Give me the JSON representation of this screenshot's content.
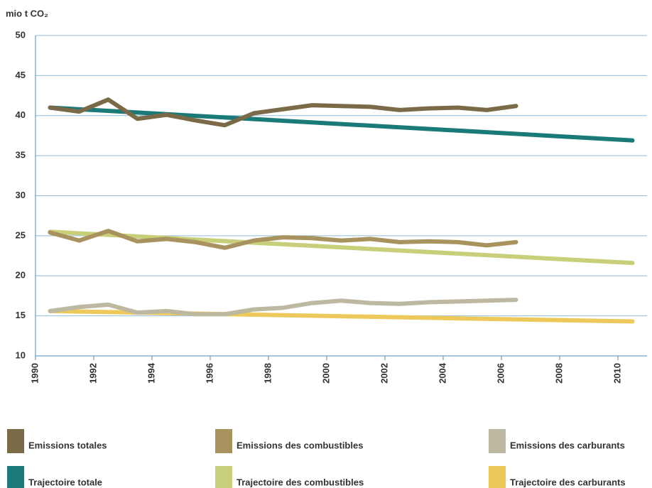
{
  "chart_data": {
    "type": "line",
    "y_label": "mio t CO₂",
    "xlim": [
      1990,
      2011
    ],
    "xticks": [
      1990,
      1992,
      1994,
      1996,
      1998,
      2000,
      2002,
      2004,
      2006,
      2008,
      2010
    ],
    "ylim": [
      10,
      50
    ],
    "yticks": [
      10,
      15,
      20,
      25,
      30,
      35,
      40,
      45,
      50
    ],
    "grid": true,
    "legend": "bottom",
    "series": [
      {
        "name": "Emissions totales",
        "color": "#7a6a48",
        "x": [
          1990.5,
          1991.5,
          1992.5,
          1993.5,
          1994.5,
          1995.5,
          1996.5,
          1997.5,
          1998.5,
          1999.5,
          2000.5,
          2001.5,
          2002.5,
          2003.5,
          2004.5,
          2005.5,
          2006.5
        ],
        "values": [
          41.0,
          40.5,
          42.0,
          39.6,
          40.1,
          39.4,
          38.8,
          40.3,
          40.8,
          41.3,
          41.2,
          41.1,
          40.7,
          40.9,
          41.0,
          40.7,
          41.2
        ]
      },
      {
        "name": "Emissions des combustibles",
        "color": "#a8935e",
        "x": [
          1990.5,
          1991.5,
          1992.5,
          1993.5,
          1994.5,
          1995.5,
          1996.5,
          1997.5,
          1998.5,
          1999.5,
          2000.5,
          2001.5,
          2002.5,
          2003.5,
          2004.5,
          2005.5,
          2006.5
        ],
        "values": [
          25.4,
          24.4,
          25.6,
          24.3,
          24.6,
          24.2,
          23.5,
          24.4,
          24.8,
          24.7,
          24.4,
          24.6,
          24.2,
          24.3,
          24.2,
          23.8,
          24.2
        ]
      },
      {
        "name": "Emissions des carburants",
        "color": "#bdb8a0",
        "x": [
          1990.5,
          1991.5,
          1992.5,
          1993.5,
          1994.5,
          1995.5,
          1996.5,
          1997.5,
          1998.5,
          1999.5,
          2000.5,
          2001.5,
          2002.5,
          2003.5,
          2004.5,
          2005.5,
          2006.5
        ],
        "values": [
          15.6,
          16.1,
          16.4,
          15.4,
          15.6,
          15.2,
          15.2,
          15.8,
          16.0,
          16.6,
          16.9,
          16.6,
          16.5,
          16.7,
          16.8,
          16.9,
          17.0
        ]
      },
      {
        "name": "Trajectoire totale",
        "color": "#1a7a78",
        "x": [
          1990.5,
          2010.5
        ],
        "values": [
          41.0,
          36.9
        ]
      },
      {
        "name": "Trajectoire des combustibles",
        "color": "#c8cf7a",
        "x": [
          1990.5,
          2010.5
        ],
        "values": [
          25.5,
          21.6
        ]
      },
      {
        "name": "Trajectoire des carburants",
        "color": "#ecc95a",
        "x": [
          1990.5,
          2010.5
        ],
        "values": [
          15.6,
          14.3
        ]
      }
    ]
  }
}
